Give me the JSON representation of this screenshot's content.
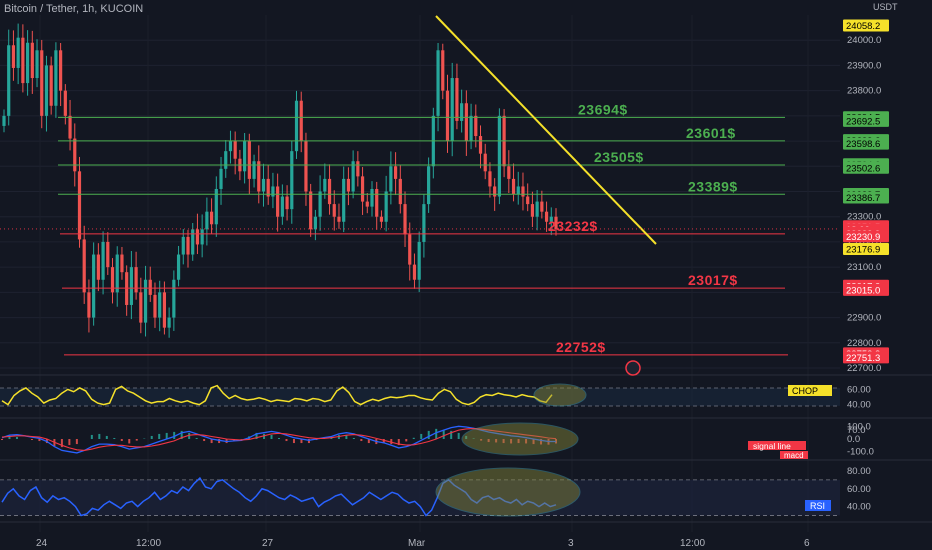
{
  "header": {
    "title": "Bitcoin / Tether, 1h, KUCOIN",
    "currency": "USDT"
  },
  "colors": {
    "bg": "#131722",
    "up": "#26a69a",
    "down": "#ef5350",
    "green_level": "#4caf50",
    "red_level": "#f23645",
    "trend": "#f5e12a",
    "axis_text": "#b2b5be",
    "chop": "#f5e12a",
    "macd": "#2962ff",
    "signal": "#f23645",
    "rsi": "#2962ff"
  },
  "chart_data": [
    {
      "type": "candlestick",
      "name": "price",
      "ylim": [
        22700,
        24100
      ],
      "y_ticks": [
        "24000.0",
        "23900.0",
        "23800.0",
        "23700.0",
        "23600.0",
        "23500.0",
        "23400.0",
        "23300.0",
        "23200.0",
        "23100.0",
        "23000.0",
        "22900.0",
        "22800.0",
        "22700.0"
      ],
      "x_ticks": [
        "24",
        "12:00",
        "27",
        "Mar",
        "3",
        "12:00",
        "6"
      ],
      "closes": [
        23700,
        23980,
        23890,
        24010,
        23830,
        23990,
        23850,
        23960,
        23700,
        23900,
        23740,
        23960,
        23800,
        23700,
        23610,
        23480,
        23210,
        23000,
        22900,
        23150,
        23050,
        23200,
        23100,
        23000,
        23150,
        23080,
        22950,
        23100,
        23000,
        22880,
        23050,
        22990,
        22900,
        23000,
        22860,
        22900,
        23050,
        23150,
        23220,
        23150,
        23250,
        23190,
        23250,
        23320,
        23270,
        23410,
        23490,
        23560,
        23600,
        23530,
        23480,
        23600,
        23450,
        23520,
        23400,
        23450,
        23380,
        23420,
        23300,
        23380,
        23330,
        23560,
        23760,
        23600,
        23400,
        23250,
        23300,
        23400,
        23450,
        23350,
        23300,
        23280,
        23450,
        23400,
        23520,
        23460,
        23360,
        23340,
        23410,
        23300,
        23280,
        23400,
        23500,
        23450,
        23350,
        23230,
        23110,
        23050,
        23200,
        23350,
        23500,
        23700,
        23960,
        23800,
        23600,
        23850,
        23680,
        23750,
        23600,
        23700,
        23620,
        23550,
        23480,
        23420,
        23380,
        23700,
        23500,
        23450,
        23390,
        23420,
        23380,
        23350,
        23300,
        23360,
        23320,
        23280,
        23300,
        23251
      ],
      "levels": [
        {
          "label": "23694$",
          "value": 23694,
          "color": "green"
        },
        {
          "label": "23601$",
          "value": 23601,
          "color": "green"
        },
        {
          "label": "23505$",
          "value": 23505,
          "color": "green"
        },
        {
          "label": "23389$",
          "value": 23389,
          "color": "green"
        },
        {
          "label": "23232$",
          "value": 23232,
          "color": "red"
        },
        {
          "label": "23017$",
          "value": 23017,
          "color": "red"
        },
        {
          "label": "22752$",
          "value": 22752,
          "color": "red"
        }
      ],
      "trendline": {
        "from": [
          23990,
          "Mar"
        ],
        "to": [
          23165,
          "after Mar"
        ]
      },
      "price_tags": [
        {
          "label": "24058.2",
          "color": "#f5e12a",
          "fg": "#000000",
          "value": 24058.2
        },
        {
          "label": "23694.5",
          "color": "#4caf50",
          "fg": "#000000",
          "value": 23694.5
        },
        {
          "label": "23692.5",
          "color": "#4caf50",
          "fg": "#000000",
          "value": 23680
        },
        {
          "label": "23600.6",
          "color": "#4caf50",
          "fg": "#000000",
          "value": 23604
        },
        {
          "label": "23598.6",
          "color": "#4caf50",
          "fg": "#000000",
          "value": 23590
        },
        {
          "label": "23504.6",
          "color": "#4caf50",
          "fg": "#000000",
          "value": 23508
        },
        {
          "label": "23502.6",
          "color": "#4caf50",
          "fg": "#000000",
          "value": 23494
        },
        {
          "label": "23388.7",
          "color": "#4caf50",
          "fg": "#000000",
          "value": 23390
        },
        {
          "label": "23386.7",
          "color": "#4caf50",
          "fg": "#000000",
          "value": 23376
        },
        {
          "label": "23251.5",
          "color": "#f23645",
          "fg": "#ffffff",
          "value": 23262
        },
        {
          "label": "18:02",
          "color": "#f23645",
          "fg": "#ffffff",
          "value": 23249
        },
        {
          "label": "23232.9",
          "color": "#f23645",
          "fg": "#ffffff",
          "value": 23236
        },
        {
          "label": "23230.9",
          "color": "#f23645",
          "fg": "#ffffff",
          "value": 23222
        },
        {
          "label": "23176.9",
          "color": "#f5e12a",
          "fg": "#000000",
          "value": 23172
        },
        {
          "label": "23017.0",
          "color": "#f23645",
          "fg": "#ffffff",
          "value": 23026
        },
        {
          "label": "23015.0",
          "color": "#f23645",
          "fg": "#ffffff",
          "value": 23010
        },
        {
          "label": "22753.3",
          "color": "#f23645",
          "fg": "#ffffff",
          "value": 22758
        },
        {
          "label": "22751.3",
          "color": "#f23645",
          "fg": "#ffffff",
          "value": 22742
        }
      ]
    },
    {
      "type": "line",
      "name": "CHOP",
      "label": "CHOP",
      "ylim": [
        25,
        75
      ],
      "y_ticks": [
        "60.00",
        "40.00"
      ],
      "values": [
        45,
        40,
        52,
        58,
        62,
        55,
        50,
        42,
        46,
        48,
        55,
        60,
        57,
        62,
        58,
        47,
        42,
        40,
        42,
        60,
        64,
        58,
        55,
        50,
        45,
        42,
        44,
        44,
        48,
        45,
        43,
        45,
        42,
        40,
        45,
        62,
        65,
        55,
        48,
        52,
        48,
        46,
        47,
        49,
        47,
        44,
        46,
        45,
        44,
        48,
        47,
        45,
        48,
        47,
        44,
        46,
        58,
        63,
        56,
        44,
        40,
        44,
        47,
        45,
        48,
        50,
        49,
        50,
        52,
        52,
        49,
        47,
        46,
        55,
        60,
        57,
        47,
        42,
        40,
        43,
        50,
        53,
        52,
        55,
        53,
        52,
        50,
        53,
        51,
        50,
        45,
        43,
        53
      ]
    },
    {
      "type": "line",
      "name": "MACD",
      "labels": [
        "signal line",
        "macd"
      ],
      "ylim": [
        -150,
        150
      ],
      "y_ticks": [
        "100.0",
        "70.0",
        "0.0",
        "-100.0"
      ],
      "macd": [
        10,
        30,
        35,
        25,
        15,
        5,
        -20,
        -60,
        -90,
        -100,
        -110,
        -90,
        -60,
        -40,
        -40,
        -45,
        -60,
        -80,
        -70,
        -60,
        -40,
        -20,
        0,
        20,
        50,
        60,
        40,
        20,
        0,
        -10,
        -20,
        -15,
        -10,
        10,
        40,
        50,
        60,
        50,
        30,
        10,
        0,
        -10,
        0,
        10,
        20,
        40,
        50,
        40,
        20,
        0,
        -20,
        -30,
        -50,
        -70,
        -60,
        -40,
        -10,
        20,
        50,
        70,
        90,
        100,
        95,
        85,
        70,
        55,
        45,
        35,
        25,
        20,
        10,
        0,
        -10,
        -20,
        -20
      ],
      "signal": [
        15,
        20,
        25,
        25,
        20,
        15,
        0,
        -25,
        -50,
        -70,
        -85,
        -90,
        -80,
        -65,
        -55,
        -50,
        -50,
        -58,
        -62,
        -62,
        -55,
        -45,
        -30,
        -15,
        10,
        30,
        35,
        30,
        20,
        10,
        0,
        -5,
        -8,
        -3,
        10,
        25,
        40,
        45,
        40,
        30,
        20,
        10,
        5,
        5,
        10,
        20,
        30,
        35,
        30,
        20,
        5,
        -10,
        -25,
        -40,
        -48,
        -46,
        -35,
        -20,
        0,
        25,
        50,
        70,
        80,
        82,
        78,
        70,
        62,
        55,
        47,
        40,
        32,
        25,
        17,
        8,
        2
      ]
    },
    {
      "type": "line",
      "name": "RSI",
      "label": "RSI",
      "ylim": [
        25,
        90
      ],
      "y_ticks": [
        "80.00",
        "60.00",
        "40.00"
      ],
      "values": [
        45,
        55,
        60,
        52,
        48,
        58,
        62,
        50,
        45,
        52,
        48,
        50,
        46,
        40,
        30,
        32,
        38,
        36,
        42,
        46,
        42,
        38,
        44,
        46,
        40,
        46,
        50,
        56,
        48,
        52,
        58,
        55,
        62,
        58,
        66,
        72,
        62,
        60,
        68,
        70,
        65,
        60,
        56,
        50,
        46,
        52,
        60,
        58,
        54,
        50,
        48,
        53,
        50,
        46,
        48,
        50,
        40,
        45,
        48,
        52,
        54,
        48,
        42,
        46,
        50,
        56,
        52,
        48,
        52,
        56,
        54,
        48,
        44,
        46,
        40,
        30,
        36,
        50,
        66,
        70,
        64,
        60,
        56,
        48,
        44,
        50,
        52,
        48,
        50,
        46,
        44,
        48,
        42,
        46,
        44,
        40,
        44,
        40,
        42
      ]
    }
  ]
}
